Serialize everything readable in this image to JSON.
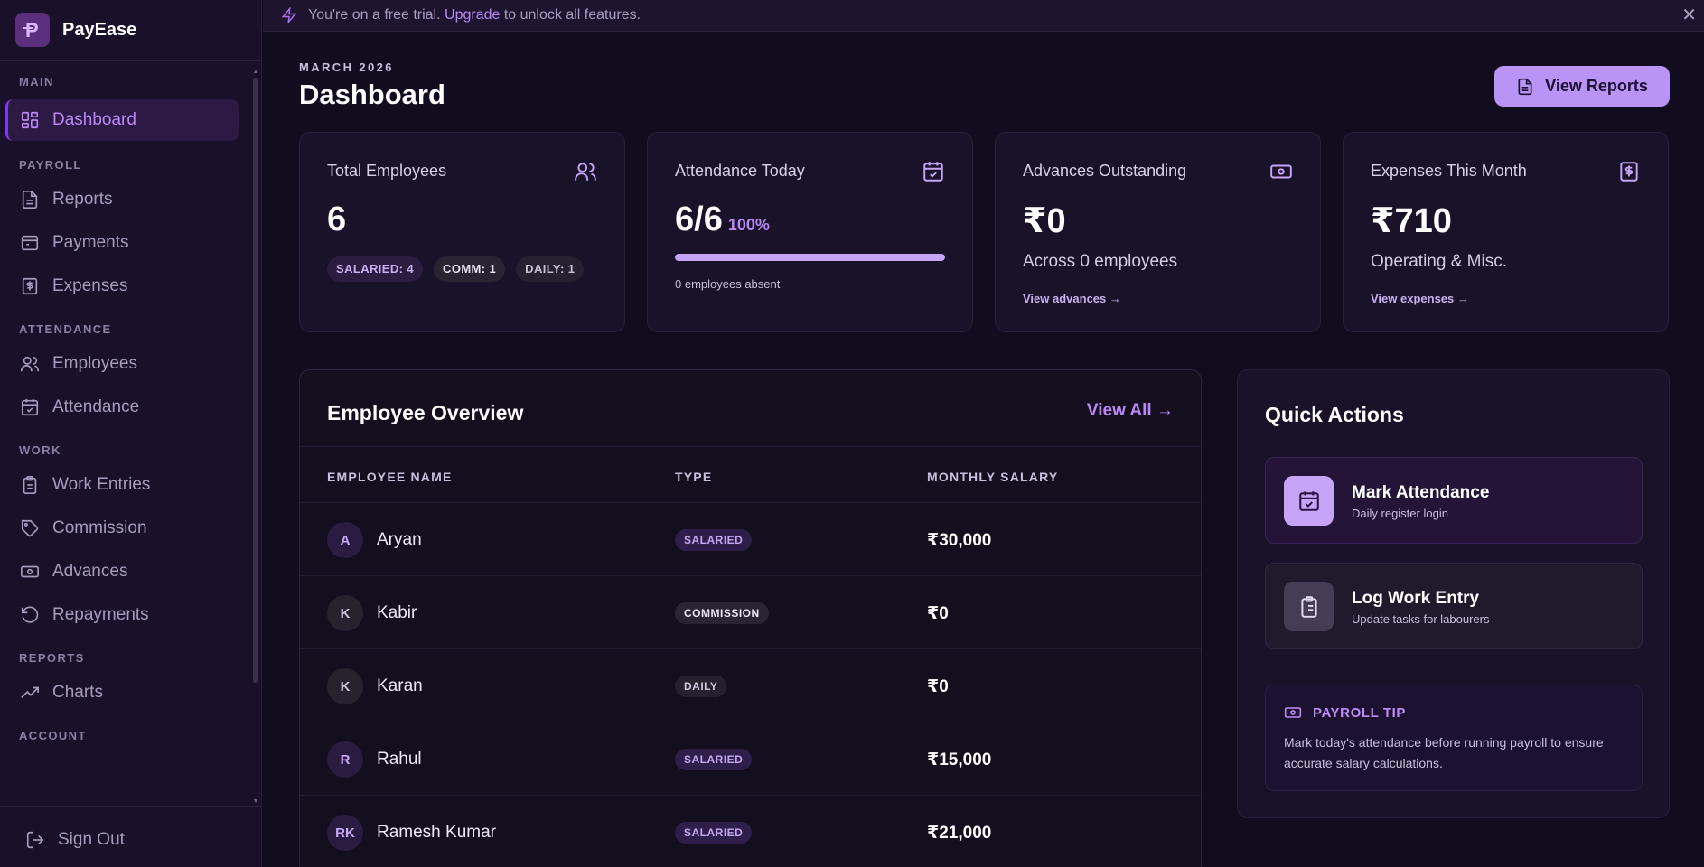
{
  "brand": {
    "name": "PayEase"
  },
  "banner": {
    "text_before": "You're on a free trial. ",
    "link": "Upgrade",
    "text_after": " to unlock all features.",
    "close": "✕"
  },
  "sidebar": {
    "sections": [
      {
        "title": "MAIN",
        "items": [
          {
            "label": "Dashboard",
            "icon": "dashboard-grid-icon",
            "active": true
          }
        ]
      },
      {
        "title": "PAYROLL",
        "items": [
          {
            "label": "Reports",
            "icon": "document-icon"
          },
          {
            "label": "Payments",
            "icon": "wallet-icon"
          },
          {
            "label": "Expenses",
            "icon": "receipt-icon"
          }
        ]
      },
      {
        "title": "ATTENDANCE",
        "items": [
          {
            "label": "Employees",
            "icon": "users-icon"
          },
          {
            "label": "Attendance",
            "icon": "calendar-check-icon"
          }
        ]
      },
      {
        "title": "WORK",
        "items": [
          {
            "label": "Work Entries",
            "icon": "clipboard-icon"
          },
          {
            "label": "Commission",
            "icon": "tag-icon"
          },
          {
            "label": "Advances",
            "icon": "banknote-icon"
          },
          {
            "label": "Repayments",
            "icon": "rotate-ccw-icon"
          }
        ]
      },
      {
        "title": "REPORTS",
        "items": [
          {
            "label": "Charts",
            "icon": "trending-up-icon"
          }
        ]
      },
      {
        "title": "ACCOUNT",
        "items": []
      }
    ],
    "sign_out": "Sign Out"
  },
  "header": {
    "period": "MARCH 2026",
    "title": "Dashboard",
    "view_reports": "View Reports"
  },
  "cards": {
    "employees": {
      "title": "Total Employees",
      "value": "6",
      "chips": [
        "SALARIED: 4",
        "COMM: 1",
        "DAILY: 1"
      ]
    },
    "attendance": {
      "title": "Attendance Today",
      "value": "6/6",
      "percent": "100%",
      "progress": 1.0,
      "note": "0 employees absent"
    },
    "advances": {
      "title": "Advances Outstanding",
      "value": "₹0",
      "sub": "Across 0 employees",
      "link": "View advances →"
    },
    "expenses": {
      "title": "Expenses This Month",
      "value": "₹710",
      "sub": "Operating & Misc.",
      "link": "View expenses →"
    }
  },
  "overview": {
    "title": "Employee Overview",
    "view_all": "View All →",
    "columns": [
      "EMPLOYEE NAME",
      "TYPE",
      "MONTHLY SALARY"
    ],
    "rows": [
      {
        "initials": "A",
        "name": "Aryan",
        "type": "SALARIED",
        "salary": "₹30,000"
      },
      {
        "initials": "K",
        "name": "Kabir",
        "type": "COMMISSION",
        "salary": "₹0"
      },
      {
        "initials": "K",
        "name": "Karan",
        "type": "DAILY",
        "salary": "₹0"
      },
      {
        "initials": "R",
        "name": "Rahul",
        "type": "SALARIED",
        "salary": "₹15,000"
      },
      {
        "initials": "RK",
        "name": "Ramesh Kumar",
        "type": "SALARIED",
        "salary": "₹21,000"
      }
    ]
  },
  "quick_actions": {
    "title": "Quick Actions",
    "items": [
      {
        "label": "Mark Attendance",
        "sub": "Daily register login",
        "icon": "calendar-check-icon"
      },
      {
        "label": "Log Work Entry",
        "sub": "Update tasks for labourers",
        "icon": "clipboard-list-icon"
      }
    ],
    "tip": {
      "title": "PAYROLL TIP",
      "body": "Mark today's attendance before running payroll to ensure accurate salary calculations."
    }
  },
  "colors": {
    "accent": "#b988f5",
    "button": "#b993f5",
    "background": "#120c1f",
    "sidebar": "#1a1029"
  }
}
